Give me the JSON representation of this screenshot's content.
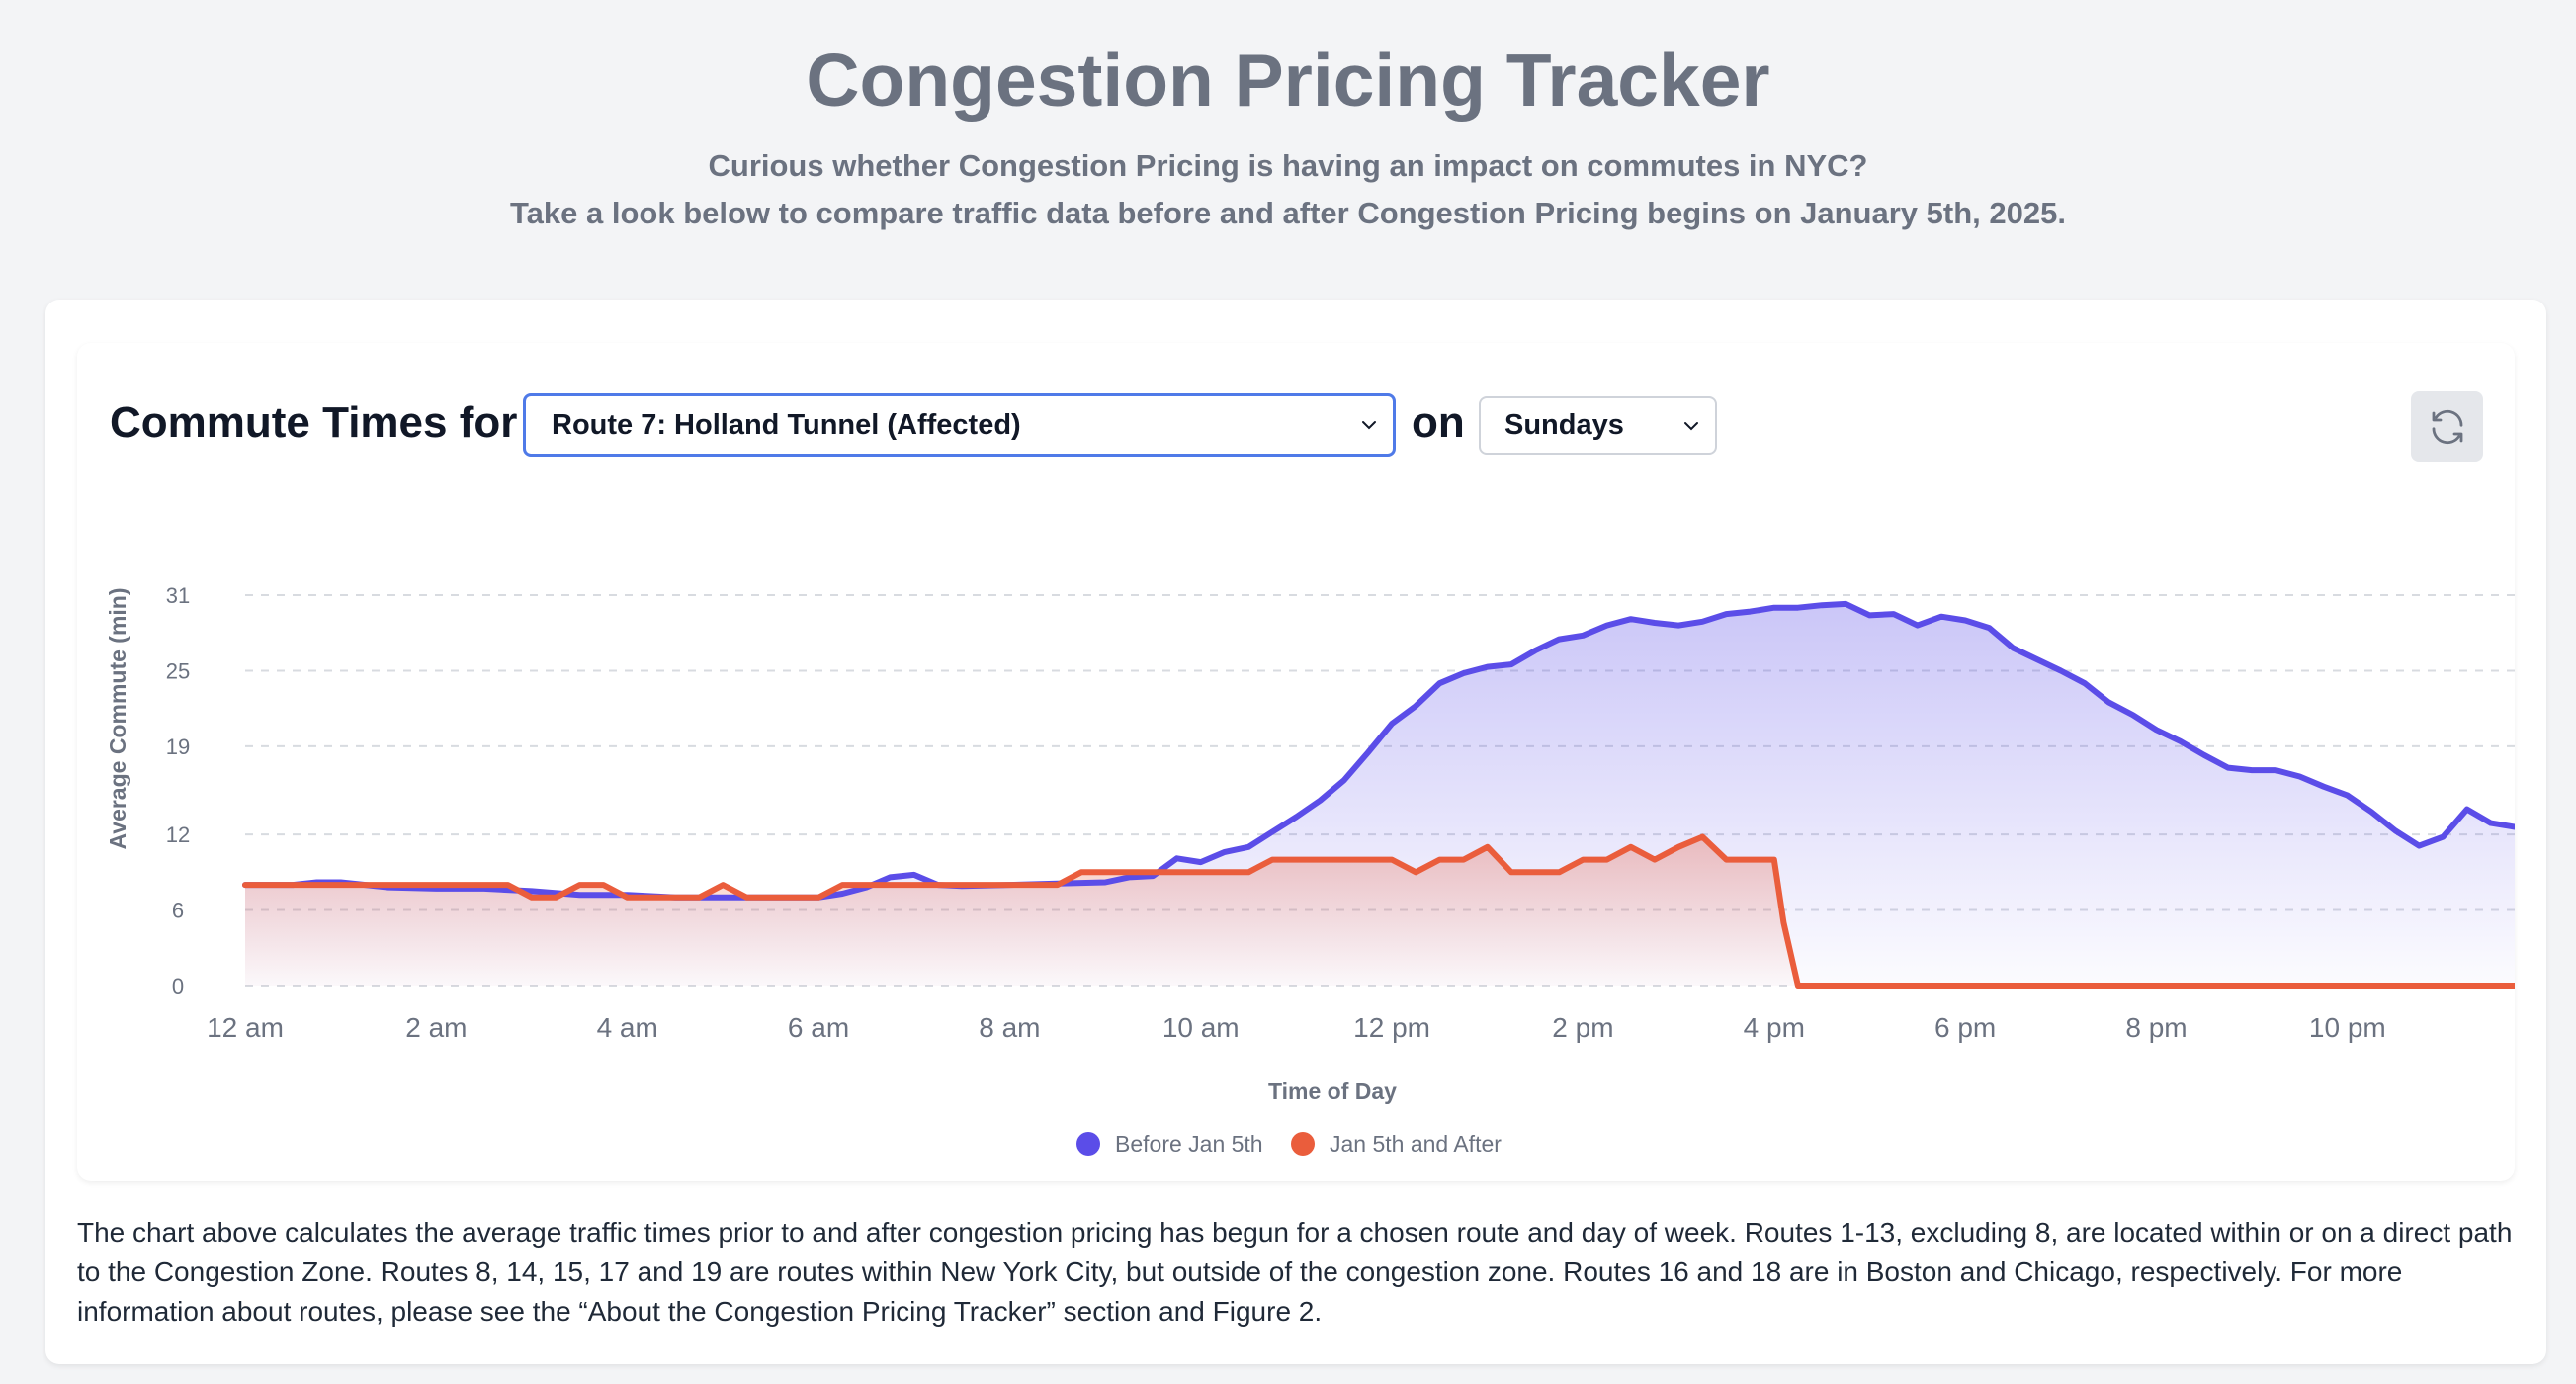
{
  "page": {
    "title": "Congestion Pricing Tracker",
    "subtitle_line1": "Curious whether Congestion Pricing is having an impact on commutes in NYC?",
    "subtitle_line2": "Take a look below to compare traffic data before and after Congestion Pricing begins on January 5th, 2025."
  },
  "controls": {
    "label_for": "Commute Times for",
    "route_selected": "Route 7: Holland Tunnel (Affected)",
    "label_on": "on",
    "day_selected": "Sundays",
    "refresh_icon": "refresh-icon"
  },
  "footer": {
    "text": "The chart above calculates the average traffic times prior to and after congestion pricing has begun for a chosen route and day of week. Routes 1-13, excluding 8, are located within or on a direct path to the Congestion Zone. Routes 8, 14, 15, 17 and 19 are routes within New York City, but outside of the congestion zone. Routes 16 and 18 are in Boston and Chicago, respectively. For more information about routes, please see the “About the Congestion Pricing Tracker” section and Figure 2."
  },
  "chart_data": {
    "type": "area",
    "xlabel": "Time of Day",
    "ylabel": "Average Commute (min)",
    "ylim": [
      0,
      31
    ],
    "yticks": [
      0,
      6,
      12,
      19,
      25,
      31
    ],
    "xlim": [
      0,
      23.75
    ],
    "xticks": [
      0,
      2,
      4,
      6,
      8,
      10,
      12,
      14,
      16,
      18,
      20,
      22
    ],
    "xtick_labels": [
      "12 am",
      "2 am",
      "4 am",
      "6 am",
      "8 am",
      "10 am",
      "12 pm",
      "2 pm",
      "4 pm",
      "6 pm",
      "8 pm",
      "10 pm"
    ],
    "grid": "horizontal dashed",
    "legend_position": "bottom-center",
    "series": [
      {
        "name": "Before Jan 5th",
        "color": "#5b4de8",
        "x": [
          0,
          0.5,
          0.75,
          1,
          1.5,
          2,
          2.5,
          3,
          3.5,
          4,
          4.5,
          5,
          5.5,
          6,
          6.25,
          6.5,
          6.75,
          7,
          7.25,
          7.5,
          8,
          8.5,
          9,
          9.25,
          9.5,
          9.75,
          10,
          10.25,
          10.5,
          10.75,
          11,
          11.25,
          11.5,
          11.75,
          12,
          12.25,
          12.5,
          12.75,
          13,
          13.25,
          13.5,
          13.75,
          14,
          14.25,
          14.5,
          14.75,
          15,
          15.25,
          15.5,
          15.75,
          16,
          16.25,
          16.5,
          16.75,
          17,
          17.25,
          17.5,
          17.75,
          18,
          18.25,
          18.5,
          18.75,
          19,
          19.25,
          19.5,
          19.75,
          20,
          20.25,
          20.5,
          20.75,
          21,
          21.25,
          21.5,
          21.75,
          22,
          22.25,
          22.5,
          22.75,
          23,
          23.25,
          23.5,
          23.75
        ],
        "values": [
          8,
          8,
          8.2,
          8.2,
          7.8,
          7.7,
          7.7,
          7.5,
          7.2,
          7.2,
          7,
          7,
          7,
          7,
          7.3,
          7.8,
          8.6,
          8.8,
          8,
          7.9,
          8,
          8.1,
          8.2,
          8.6,
          8.7,
          10.1,
          9.8,
          10.6,
          11,
          12.2,
          13.4,
          14.7,
          16.3,
          18.5,
          20.8,
          22.2,
          24,
          24.8,
          25.3,
          25.5,
          26.6,
          27.5,
          27.8,
          28.6,
          29.1,
          28.8,
          28.6,
          28.9,
          29.5,
          29.7,
          30,
          30,
          30.2,
          30.3,
          29.4,
          29.5,
          28.6,
          29.3,
          29,
          28.4,
          26.8,
          25.9,
          25,
          24,
          22.5,
          21.5,
          20.3,
          19.4,
          18.3,
          17.3,
          17.1,
          17.1,
          16.6,
          15.8,
          15.1,
          13.8,
          12.3,
          11.1,
          11.8,
          14,
          12.9,
          12.6
        ]
      },
      {
        "name": "Jan 5th and After",
        "color": "#ea5d3c",
        "x": [
          0,
          0.5,
          1,
          1.5,
          2,
          2.5,
          2.75,
          3,
          3.25,
          3.5,
          3.75,
          4,
          4.25,
          4.5,
          4.75,
          5,
          5.25,
          5.5,
          5.75,
          6,
          6.25,
          6.5,
          7,
          7.5,
          8,
          8.5,
          8.75,
          9,
          9.5,
          10,
          10.25,
          10.5,
          10.75,
          11,
          11.5,
          12,
          12.25,
          12.5,
          12.75,
          13,
          13.25,
          13.5,
          13.75,
          14,
          14.25,
          14.5,
          14.75,
          15,
          15.25,
          15.5,
          15.75,
          16,
          16.1,
          16.25,
          16.5,
          17,
          18,
          19,
          20,
          21,
          22,
          23,
          23.75
        ],
        "values": [
          8,
          8,
          8,
          8,
          8,
          8,
          8,
          7,
          7,
          8,
          8,
          7,
          7,
          7,
          7,
          8,
          7,
          7,
          7,
          7,
          8,
          8,
          8,
          8,
          8,
          8,
          9,
          9,
          9,
          9,
          9,
          9,
          10,
          10,
          10,
          10,
          9,
          10,
          10,
          11,
          9,
          9,
          9,
          10,
          10,
          11,
          10,
          11,
          11.8,
          10,
          10,
          10,
          5,
          0,
          0,
          0,
          0,
          0,
          0,
          0,
          0,
          0,
          0
        ]
      }
    ]
  }
}
